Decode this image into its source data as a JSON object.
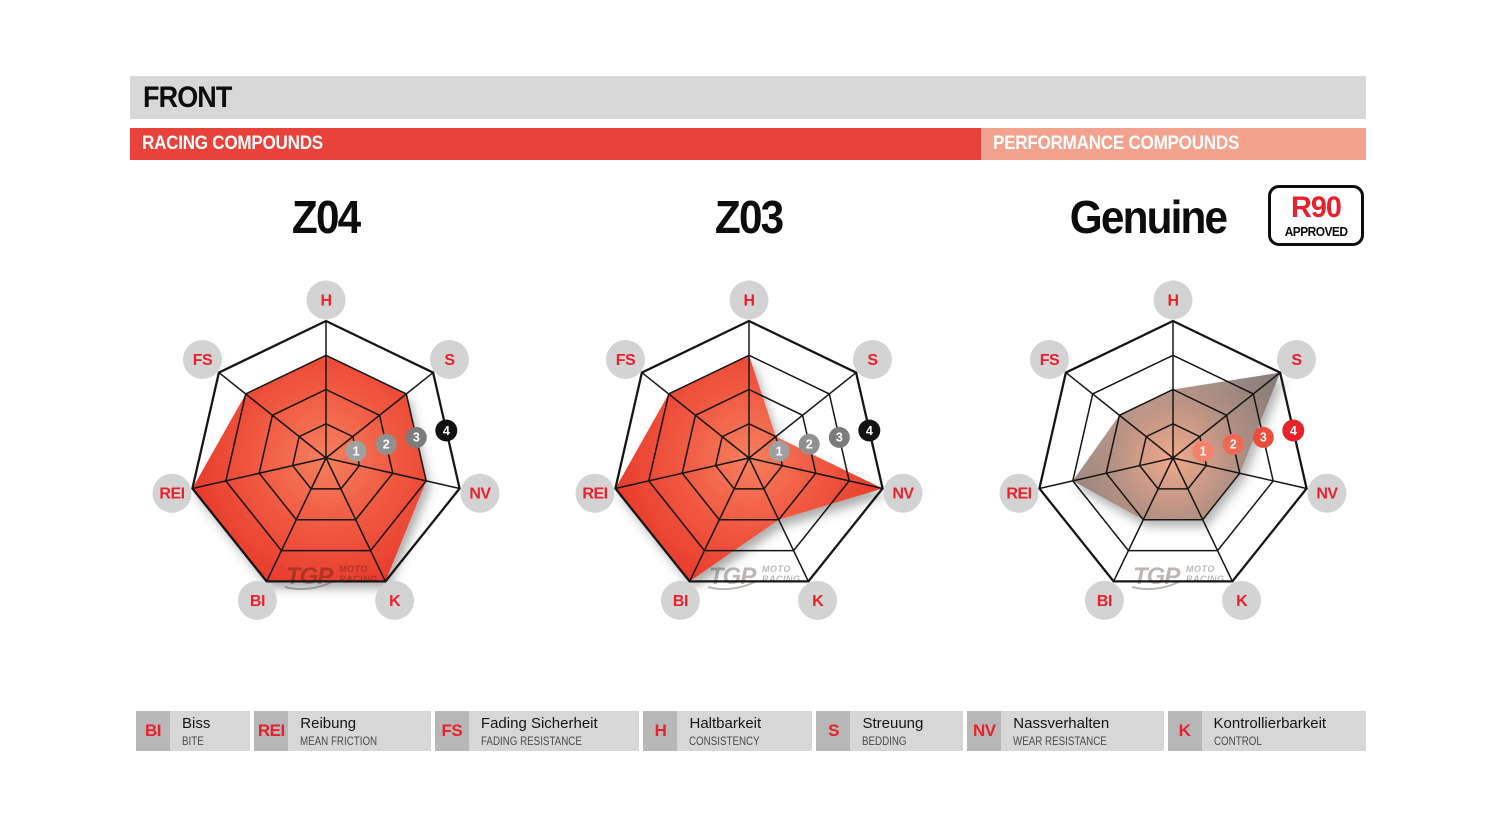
{
  "header": {
    "title": "FRONT",
    "racing_label": "RACING COMPOUNDS",
    "performance_label": "PERFORMANCE COMPOUNDS"
  },
  "badge": {
    "line1": "R90",
    "line2": "APPROVED"
  },
  "watermark": {
    "logo": "TGP",
    "line1": "MOTO",
    "line2": "RACING"
  },
  "colors": {
    "racing_red": "#e9423a",
    "performance_salmon": "#f3a28e",
    "header_gray": "#d8d8d8",
    "accent_red": "#e8212d",
    "label_circle_gray": "#d3d3d3",
    "grid_black": "#161616",
    "red_fill_center": "#f5805f",
    "red_fill_mid": "#f05a42",
    "red_fill_edge": "#e73527",
    "gray_fill_center": "#f2a685",
    "gray_fill_mid": "#b18d7f",
    "gray_fill_edge": "#6e6d6d",
    "marker_grays": [
      "#a0a0a0",
      "#909090",
      "#7b7b7b",
      "#131313"
    ],
    "marker_reds": [
      "#f5816a",
      "#f26752",
      "#ee4b3a",
      "#e8212b"
    ]
  },
  "chart_data": [
    {
      "type": "radar",
      "title": "Z04",
      "group": "RACING COMPOUNDS",
      "axes": [
        "H",
        "S",
        "NV",
        "K",
        "BI",
        "REI",
        "FS"
      ],
      "values": {
        "H": 3,
        "S": 3,
        "NV": 3,
        "K": 4,
        "BI": 4,
        "REI": 4,
        "FS": 3
      },
      "scale": [
        1,
        2,
        3,
        4
      ],
      "max": 4,
      "fill": "red",
      "marker_style": "gray"
    },
    {
      "type": "radar",
      "title": "Z03",
      "group": "RACING COMPOUNDS",
      "axes": [
        "H",
        "S",
        "NV",
        "K",
        "BI",
        "REI",
        "FS"
      ],
      "values": {
        "H": 3,
        "S": 1,
        "NV": 4,
        "K": 2,
        "BI": 4,
        "REI": 4,
        "FS": 3
      },
      "scale": [
        1,
        2,
        3,
        4
      ],
      "max": 4,
      "fill": "red",
      "marker_style": "gray"
    },
    {
      "type": "radar",
      "title": "Genuine",
      "group": "PERFORMANCE COMPOUNDS",
      "badge": "R90 APPROVED",
      "axes": [
        "H",
        "S",
        "NV",
        "K",
        "BI",
        "REI",
        "FS"
      ],
      "values": {
        "H": 2,
        "S": 4,
        "NV": 2,
        "K": 2,
        "BI": 2,
        "REI": 3,
        "FS": 2
      },
      "scale": [
        1,
        2,
        3,
        4
      ],
      "max": 4,
      "fill": "gray",
      "marker_style": "red"
    }
  ],
  "legend": [
    {
      "abbr": "BI",
      "de": "Biss",
      "en": "BITE"
    },
    {
      "abbr": "REI",
      "de": "Reibung",
      "en": "MEAN FRICTION"
    },
    {
      "abbr": "FS",
      "de": "Fading Sicherheit",
      "en": "FADING RESISTANCE"
    },
    {
      "abbr": "H",
      "de": "Haltbarkeit",
      "en": "CONSISTENCY"
    },
    {
      "abbr": "S",
      "de": "Streuung",
      "en": "BEDDING"
    },
    {
      "abbr": "NV",
      "de": "Nassverhalten",
      "en": "WEAR RESISTANCE"
    },
    {
      "abbr": "K",
      "de": "Kontrollierbarkeit",
      "en": "CONTROL"
    }
  ]
}
